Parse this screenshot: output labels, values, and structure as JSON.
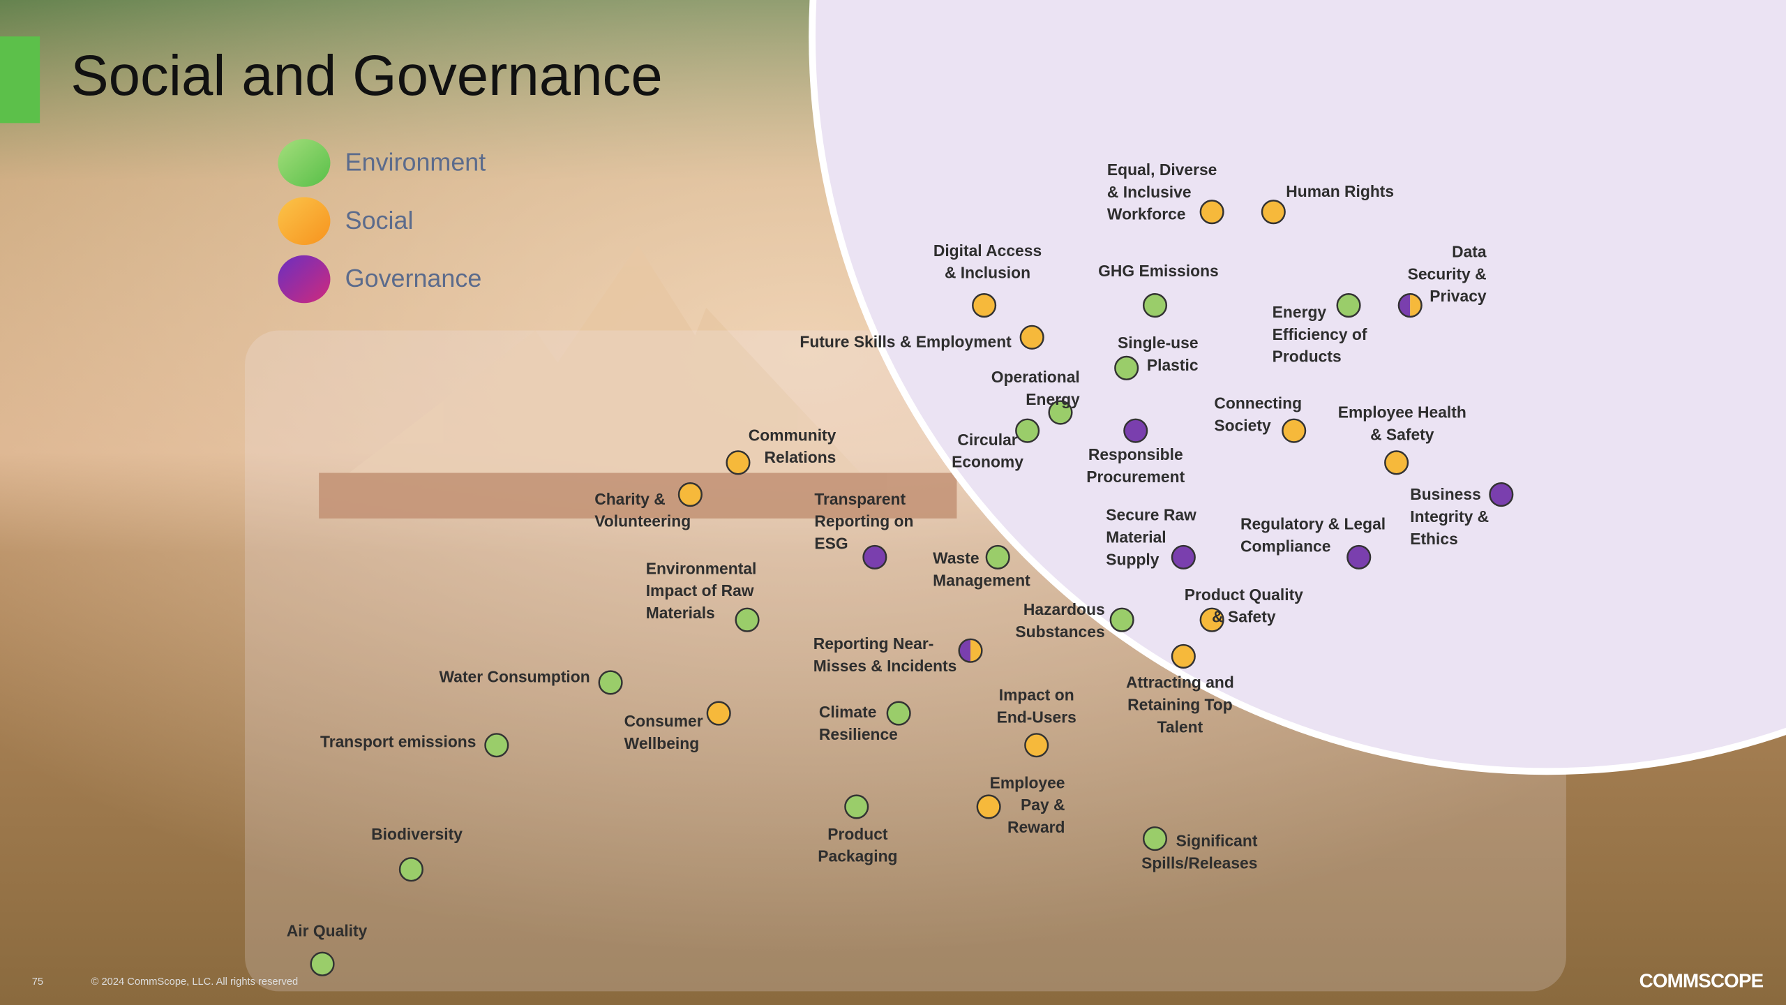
{
  "title": "Social and Governance",
  "legend": [
    {
      "name": "Environment",
      "colors": [
        "#a4de7c",
        "#58bf48"
      ]
    },
    {
      "name": "Social",
      "colors": [
        "#fbc44a",
        "#f7931e"
      ]
    },
    {
      "name": "Governance",
      "colors": [
        "#6a2fc0",
        "#d02a7c"
      ]
    }
  ],
  "topics": [
    {
      "label": [
        "Equal, Diverse",
        "& Inclusive",
        "Workforce"
      ],
      "color": "#f6b93b"
    },
    {
      "label": [
        "Human Rights"
      ],
      "color": "#f6b93b"
    },
    {
      "label": [
        "Digital Access",
        "& Inclusion"
      ],
      "color": "#f6b93b"
    },
    {
      "label": [
        "GHG Emissions"
      ],
      "color": "#9acd6a"
    },
    {
      "label": [
        "Data",
        "Security &",
        "Privacy"
      ],
      "color": [
        "#7a3fae",
        "#f6b93b"
      ]
    },
    {
      "label": [
        "Energy",
        "Efficiency of",
        "Products"
      ],
      "color": "#9acd6a"
    },
    {
      "label": [
        "Future Skills & Employment"
      ],
      "color": "#f6b93b"
    },
    {
      "label": [
        "Single-use",
        "Plastic"
      ],
      "color": "#9acd6a"
    },
    {
      "label": [
        "Operational",
        "Energy"
      ],
      "color": "#9acd6a"
    },
    {
      "label": [
        "Circular",
        "Economy"
      ],
      "color": "#9acd6a"
    },
    {
      "label": [
        "Responsible",
        "Procurement"
      ],
      "color": "#7a3fae"
    },
    {
      "label": [
        "Connecting",
        "Society"
      ],
      "color": "#f6b93b"
    },
    {
      "label": [
        "Employee Health",
        "& Safety"
      ],
      "color": "#f6b93b"
    },
    {
      "label": [
        "Community",
        "Relations"
      ],
      "color": "#f6b93b"
    },
    {
      "label": [
        "Charity &",
        "Volunteering"
      ],
      "color": "#f6b93b"
    },
    {
      "label": [
        "Transparent",
        "Reporting on",
        "ESG"
      ],
      "color": "#7a3fae"
    },
    {
      "label": [
        "Business",
        "Integrity &",
        "Ethics"
      ],
      "color": "#7a3fae"
    },
    {
      "label": [
        "Secure Raw",
        "Material",
        "Supply"
      ],
      "color": "#7a3fae"
    },
    {
      "label": [
        "Regulatory & Legal",
        "Compliance"
      ],
      "color": "#7a3fae"
    },
    {
      "label": [
        "Waste",
        "Management"
      ],
      "color": "#9acd6a"
    },
    {
      "label": [
        "Environmental",
        "Impact of Raw",
        "Materials"
      ],
      "color": "#9acd6a"
    },
    {
      "label": [
        "Product Quality",
        "& Safety"
      ],
      "color": "#f6b93b"
    },
    {
      "label": [
        "Hazardous",
        "Substances"
      ],
      "color": "#9acd6a"
    },
    {
      "label": [
        "Reporting Near-",
        "Misses & Incidents"
      ],
      "color": [
        "#7a3fae",
        "#f6b93b"
      ]
    },
    {
      "label": [
        "Attracting and",
        "Retaining Top",
        "Talent"
      ],
      "color": "#f6b93b"
    },
    {
      "label": [
        "Water Consumption"
      ],
      "color": "#9acd6a"
    },
    {
      "label": [
        "Consumer",
        "Wellbeing"
      ],
      "color": "#f6b93b"
    },
    {
      "label": [
        "Climate",
        "Resilience"
      ],
      "color": "#9acd6a"
    },
    {
      "label": [
        "Impact on",
        "End-Users"
      ],
      "color": "#f6b93b"
    },
    {
      "label": [
        "Transport emissions"
      ],
      "color": "#9acd6a"
    },
    {
      "label": [
        "Employee",
        "Pay &",
        "Reward"
      ],
      "color": "#f6b93b"
    },
    {
      "label": [
        "Product",
        "Packaging"
      ],
      "color": "#9acd6a"
    },
    {
      "label": [
        "Significant",
        "Spills/Releases"
      ],
      "color": "#9acd6a"
    },
    {
      "label": [
        "Biodiversity"
      ],
      "color": "#9acd6a"
    },
    {
      "label": [
        "Air Quality"
      ],
      "color": "#9acd6a"
    }
  ],
  "footer": {
    "page": "75",
    "copyright": "© 2024 CommScope, LLC. All rights reserved",
    "logo": "COMMSCOPE"
  }
}
